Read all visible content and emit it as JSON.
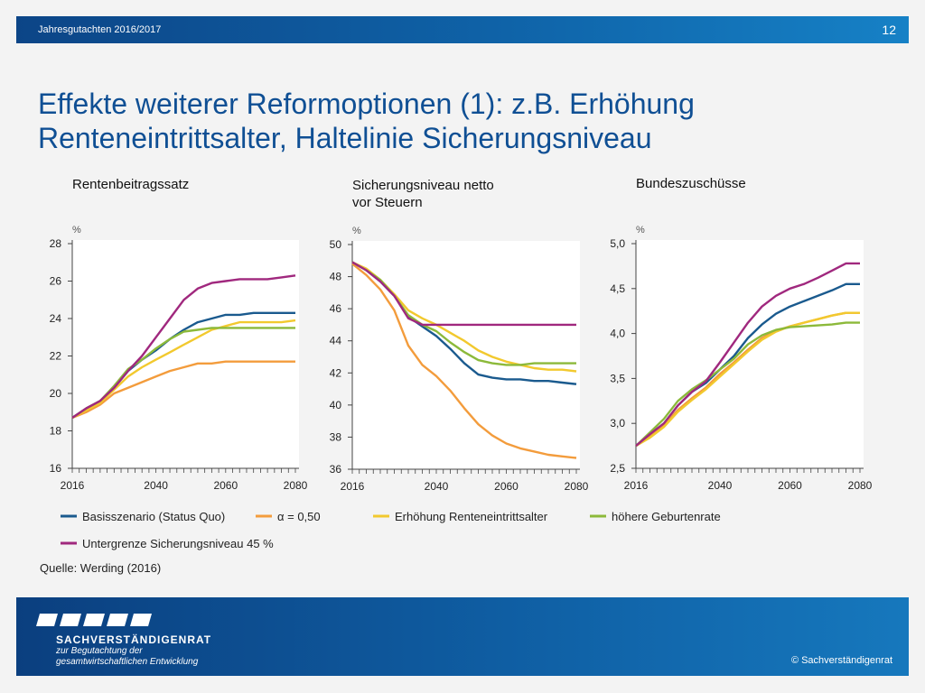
{
  "header": {
    "subtitle": "Jahresgutachten  2016/2017",
    "page_number": "12"
  },
  "title": {
    "line1": "Effekte weiterer Reformoptionen (1): z.B. Erhöhung",
    "line2": "Renteneintrittsalter, Haltelinie Sicherungsniveau"
  },
  "source": "Quelle: Werding (2016)",
  "footer": {
    "org_name": "SACHVERSTÄNDIGENRAT",
    "org_line2": "zur Begutachtung der",
    "org_line3": "gesamtwirtschaftlichen Entwicklung",
    "copyright": "© Sachverständigenrat"
  },
  "colors": {
    "series": [
      "#1a5a8e",
      "#f39c3c",
      "#f2c92e",
      "#8cb93a",
      "#a0287e"
    ]
  },
  "chart_data": [
    {
      "type": "line",
      "title": "Rentenbeitragssatz",
      "unit": "%",
      "x": [
        2016,
        2020,
        2024,
        2028,
        2032,
        2036,
        2040,
        2044,
        2048,
        2052,
        2056,
        2060,
        2064,
        2068,
        2072,
        2076,
        2080
      ],
      "xticks": [
        "2016",
        "2040",
        "2060",
        "2080"
      ],
      "yticks": [
        "16",
        "18",
        "20",
        "22",
        "24",
        "26",
        "28"
      ],
      "ylim": [
        16,
        28
      ],
      "series": [
        {
          "name": "Basisszenario (Status Quo)",
          "values": [
            18.7,
            19.2,
            19.6,
            20.3,
            21.2,
            21.8,
            22.3,
            22.9,
            23.4,
            23.8,
            24.0,
            24.2,
            24.2,
            24.3,
            24.3,
            24.3,
            24.3
          ]
        },
        {
          "values": [
            18.7,
            19.0,
            19.4,
            20.0,
            20.3,
            20.6,
            20.9,
            21.2,
            21.4,
            21.6,
            21.6,
            21.7,
            21.7,
            21.7,
            21.7,
            21.7,
            21.7
          ]
        },
        {
          "values": [
            18.7,
            19.1,
            19.5,
            20.2,
            20.9,
            21.4,
            21.8,
            22.2,
            22.6,
            23.0,
            23.4,
            23.6,
            23.8,
            23.8,
            23.8,
            23.8,
            23.9
          ]
        },
        {
          "values": [
            18.7,
            19.2,
            19.6,
            20.4,
            21.3,
            21.8,
            22.4,
            22.9,
            23.3,
            23.4,
            23.5,
            23.5,
            23.5,
            23.5,
            23.5,
            23.5,
            23.5
          ]
        },
        {
          "values": [
            18.7,
            19.2,
            19.6,
            20.3,
            21.2,
            22.0,
            23.0,
            24.0,
            25.0,
            25.6,
            25.9,
            26.0,
            26.1,
            26.1,
            26.1,
            26.2,
            26.3
          ]
        }
      ]
    },
    {
      "type": "line",
      "title": "Sicherungsniveau netto vor Steuern",
      "unit": "%",
      "x": [
        2016,
        2020,
        2024,
        2028,
        2032,
        2036,
        2040,
        2044,
        2048,
        2052,
        2056,
        2060,
        2064,
        2068,
        2072,
        2076,
        2080
      ],
      "xticks": [
        "2016",
        "2040",
        "2060",
        "2080"
      ],
      "yticks": [
        "36",
        "38",
        "40",
        "42",
        "44",
        "46",
        "48",
        "50"
      ],
      "ylim": [
        36,
        50
      ],
      "series": [
        {
          "values": [
            48.9,
            48.4,
            47.7,
            46.8,
            45.5,
            44.9,
            44.3,
            43.5,
            42.6,
            41.9,
            41.7,
            41.6,
            41.6,
            41.5,
            41.5,
            41.4,
            41.3
          ]
        },
        {
          "values": [
            48.8,
            48.1,
            47.2,
            45.9,
            43.7,
            42.5,
            41.8,
            40.9,
            39.8,
            38.8,
            38.1,
            37.6,
            37.3,
            37.1,
            36.9,
            36.8,
            36.7
          ]
        },
        {
          "values": [
            48.9,
            48.5,
            47.8,
            46.9,
            45.9,
            45.4,
            45.0,
            44.5,
            44.0,
            43.4,
            43.0,
            42.7,
            42.5,
            42.3,
            42.2,
            42.2,
            42.1
          ]
        },
        {
          "values": [
            48.9,
            48.4,
            47.8,
            46.8,
            45.6,
            45.0,
            44.6,
            43.9,
            43.3,
            42.8,
            42.6,
            42.5,
            42.5,
            42.6,
            42.6,
            42.6,
            42.6
          ]
        },
        {
          "values": [
            48.9,
            48.4,
            47.7,
            46.8,
            45.4,
            45.0,
            45.0,
            45.0,
            45.0,
            45.0,
            45.0,
            45.0,
            45.0,
            45.0,
            45.0,
            45.0,
            45.0
          ]
        }
      ]
    },
    {
      "type": "line",
      "title": "Bundeszuschüsse",
      "unit": "%",
      "x": [
        2016,
        2020,
        2024,
        2028,
        2032,
        2036,
        2040,
        2044,
        2048,
        2052,
        2056,
        2060,
        2064,
        2068,
        2072,
        2076,
        2080
      ],
      "xticks": [
        "2016",
        "2040",
        "2060",
        "2080"
      ],
      "yticks": [
        "2,5",
        "3,0",
        "3,5",
        "4,0",
        "4,5",
        "5,0"
      ],
      "ylim": [
        2.5,
        5.0
      ],
      "series": [
        {
          "values": [
            2.75,
            2.88,
            3.0,
            3.2,
            3.35,
            3.45,
            3.6,
            3.75,
            3.95,
            4.1,
            4.22,
            4.3,
            4.36,
            4.42,
            4.48,
            4.55,
            4.55
          ]
        },
        {
          "values": [
            2.75,
            2.85,
            2.98,
            3.15,
            3.28,
            3.4,
            3.55,
            3.68,
            3.82,
            3.95,
            4.03,
            4.08,
            4.12,
            4.16,
            4.2,
            4.23,
            4.23
          ]
        },
        {
          "values": [
            2.75,
            2.84,
            2.96,
            3.13,
            3.26,
            3.38,
            3.52,
            3.66,
            3.8,
            3.93,
            4.02,
            4.08,
            4.12,
            4.16,
            4.2,
            4.23,
            4.23
          ]
        },
        {
          "values": [
            2.75,
            2.9,
            3.05,
            3.25,
            3.38,
            3.48,
            3.6,
            3.72,
            3.88,
            3.98,
            4.04,
            4.07,
            4.08,
            4.09,
            4.1,
            4.12,
            4.12
          ]
        },
        {
          "values": [
            2.75,
            2.88,
            3.0,
            3.2,
            3.35,
            3.47,
            3.68,
            3.9,
            4.12,
            4.3,
            4.42,
            4.5,
            4.55,
            4.62,
            4.7,
            4.78,
            4.78
          ]
        }
      ]
    }
  ],
  "legend": [
    {
      "label": "Basisszenario (Status Quo)"
    },
    {
      "label": "α = 0,50"
    },
    {
      "label": "Erhöhung Renteneintrittsalter"
    },
    {
      "label": "höhere Geburtenrate"
    },
    {
      "label": "Untergrenze Sicherungsniveau 45 %"
    }
  ]
}
